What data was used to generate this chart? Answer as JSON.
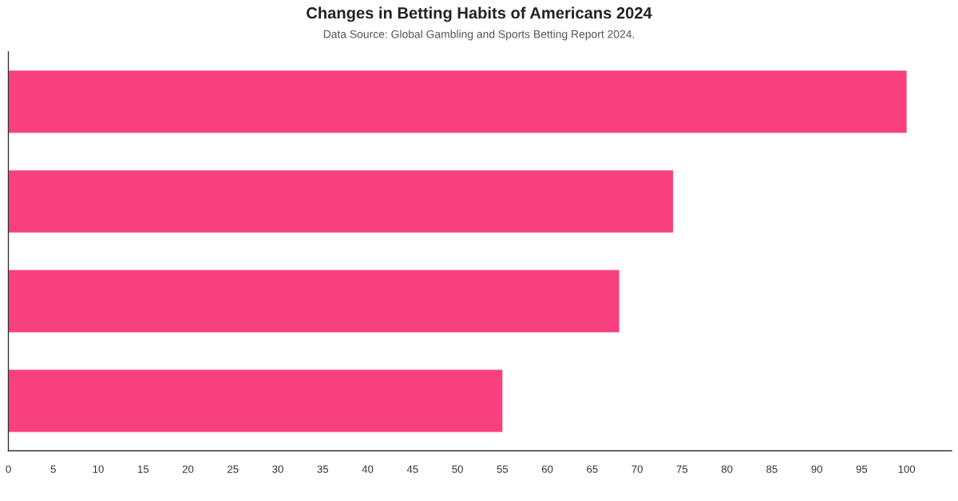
{
  "chart_data": {
    "type": "bar",
    "orientation": "horizontal",
    "title": "Changes in Betting Habits of Americans 2024",
    "subtitle": "Data Source: Global Gambling and Sports Betting Report 2024.",
    "categories": [
      null,
      null,
      null,
      null
    ],
    "values": [
      100,
      74,
      68,
      55
    ],
    "color": "#f8407f",
    "xlim": [
      0,
      105
    ],
    "xticks": [
      0,
      5,
      10,
      15,
      20,
      25,
      30,
      35,
      40,
      45,
      50,
      55,
      60,
      65,
      70,
      75,
      80,
      85,
      90,
      95,
      100
    ],
    "tick_labels": "x"
  }
}
